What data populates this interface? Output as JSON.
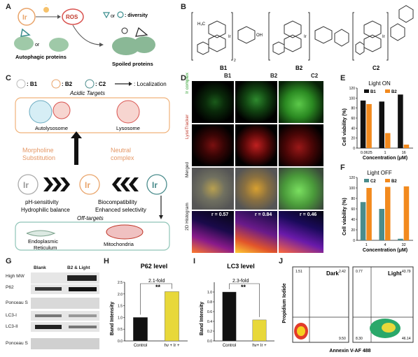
{
  "panels": {
    "A": "A",
    "B": "B",
    "C": "C",
    "D": "D",
    "E": "E",
    "F": "F",
    "G": "G",
    "H": "H",
    "I": "I",
    "J": "J"
  },
  "panelA": {
    "ir": "Ir",
    "ros": "ROS",
    "or": "or",
    "diversity_suffix": ": diversity",
    "diversity_or": "or",
    "autophagic": "Autophagic proteins",
    "spoiled": "Spoiled proteins"
  },
  "panelB": {
    "compounds": [
      "B1",
      "B2",
      "C2"
    ],
    "ch3": "H₃C",
    "ir": "Ir",
    "oh": "OH",
    "sub2": "2"
  },
  "panelC": {
    "legend_b1": ": B1",
    "legend_b2": ": B2",
    "legend_c2": ": C2",
    "localization": ": Localization",
    "acidic": "Acidic Targets",
    "autolysosome": "Autolysosome",
    "lysosome": "Lysosome",
    "morpholine": "Morpholine\nSubstitution",
    "neutral": "Neutral\ncomplex",
    "ir": "Ir",
    "ph": "pH-sensitivity",
    "hydro": "Hydrophilic balance",
    "biocompat": "Biocompatibility",
    "selectivity": "Enhanced selectivity",
    "offtargets": "Off-targets",
    "er": "Endoplasmic\nReticulum",
    "mito": "Mitochondria"
  },
  "panelD": {
    "cols": [
      "B1",
      "B2",
      "C2"
    ],
    "rows": [
      "Ir complex",
      "LysoTracker",
      "Merged",
      "2D Histogram"
    ],
    "r_values": [
      "r = 0.57",
      "r = 0.84",
      "r = 0.46"
    ]
  },
  "panelE": {
    "title": "Light ON",
    "ylabel": "Cell viability (%)",
    "xlabel": "Concentration (μM)"
  },
  "panelF": {
    "title": "Light OFF",
    "ylabel": "Cell viability (%)",
    "xlabel": "Concentration (μM)"
  },
  "panelG": {
    "col_labels": [
      "Blank",
      "B2 & Light"
    ],
    "row_labels": [
      "High MW",
      "P62",
      "",
      "Ponceau S",
      "LC3-I",
      "LC3-II",
      "",
      "Ponceau S"
    ]
  },
  "panelH": {
    "title": "P62 level",
    "fold": "2.1-fold",
    "sig": "**",
    "ylabel": "Band Intensity",
    "xcats": [
      "Control",
      "hν + Ir +"
    ]
  },
  "panelI": {
    "title": "LC3 level",
    "fold": "2.3-fold",
    "sig": "**",
    "ylabel": "Band Intensity",
    "xcats": [
      "Control",
      "hν+ Ir +"
    ]
  },
  "panelJ": {
    "ylabel": "Propidium Iodide",
    "xlabel": "Annexin V-AF 488",
    "dark": "Dark",
    "light": "Light",
    "dark_q": [
      "1.51",
      "2.42",
      "9.50"
    ],
    "light_q": [
      "0.77",
      "43.79",
      "8.30",
      "46.14"
    ]
  },
  "chart_data": [
    {
      "type": "bar",
      "panel": "E",
      "title": "Light ON",
      "categories": [
        "0.0625",
        "1",
        "16"
      ],
      "series": [
        {
          "name": "B1",
          "values": [
            95,
            93,
            107
          ]
        },
        {
          "name": "B2",
          "values": [
            88,
            30,
            7
          ]
        }
      ],
      "ylim": [
        0,
        120
      ],
      "yticks": [
        0,
        20,
        40,
        60,
        80,
        100,
        120
      ],
      "ylabel": "Cell viability (%)",
      "xlabel": "Concentration (μM)",
      "legend": "top"
    },
    {
      "type": "bar",
      "panel": "F",
      "title": "Light OFF",
      "categories": [
        "1",
        "4",
        "32"
      ],
      "series": [
        {
          "name": "C2",
          "values": [
            73,
            60,
            3
          ]
        },
        {
          "name": "B2",
          "values": [
            100,
            102,
            103
          ]
        }
      ],
      "ylim": [
        0,
        120
      ],
      "yticks": [
        0,
        20,
        40,
        60,
        80,
        100,
        120
      ],
      "ylabel": "Cell viability (%)",
      "xlabel": "Concentration (μM)",
      "legend": "top"
    },
    {
      "type": "bar",
      "panel": "H",
      "title": "P62 level",
      "categories": [
        "Control",
        "hν + Ir +"
      ],
      "values": [
        1.0,
        2.1
      ],
      "ylim": [
        0,
        2.5
      ],
      "yticks": [
        0,
        0.5,
        1.0,
        1.5,
        2.0,
        2.5
      ],
      "ylabel": "Band Intensity"
    },
    {
      "type": "bar",
      "panel": "I",
      "title": "LC3 level",
      "categories": [
        "Control",
        "hν+ Ir +"
      ],
      "values": [
        1.0,
        0.43
      ],
      "ylim": [
        0,
        1.2
      ],
      "yticks": [
        0,
        0.2,
        0.4,
        0.6,
        0.8,
        1.0
      ],
      "ylabel": "Band Intensity"
    }
  ],
  "colors": {
    "black": "#111111",
    "orange": "#f28a1e",
    "teal": "#4a8c8c",
    "yellow": "#e8d83a",
    "ir_orange": "#e9a46a"
  }
}
